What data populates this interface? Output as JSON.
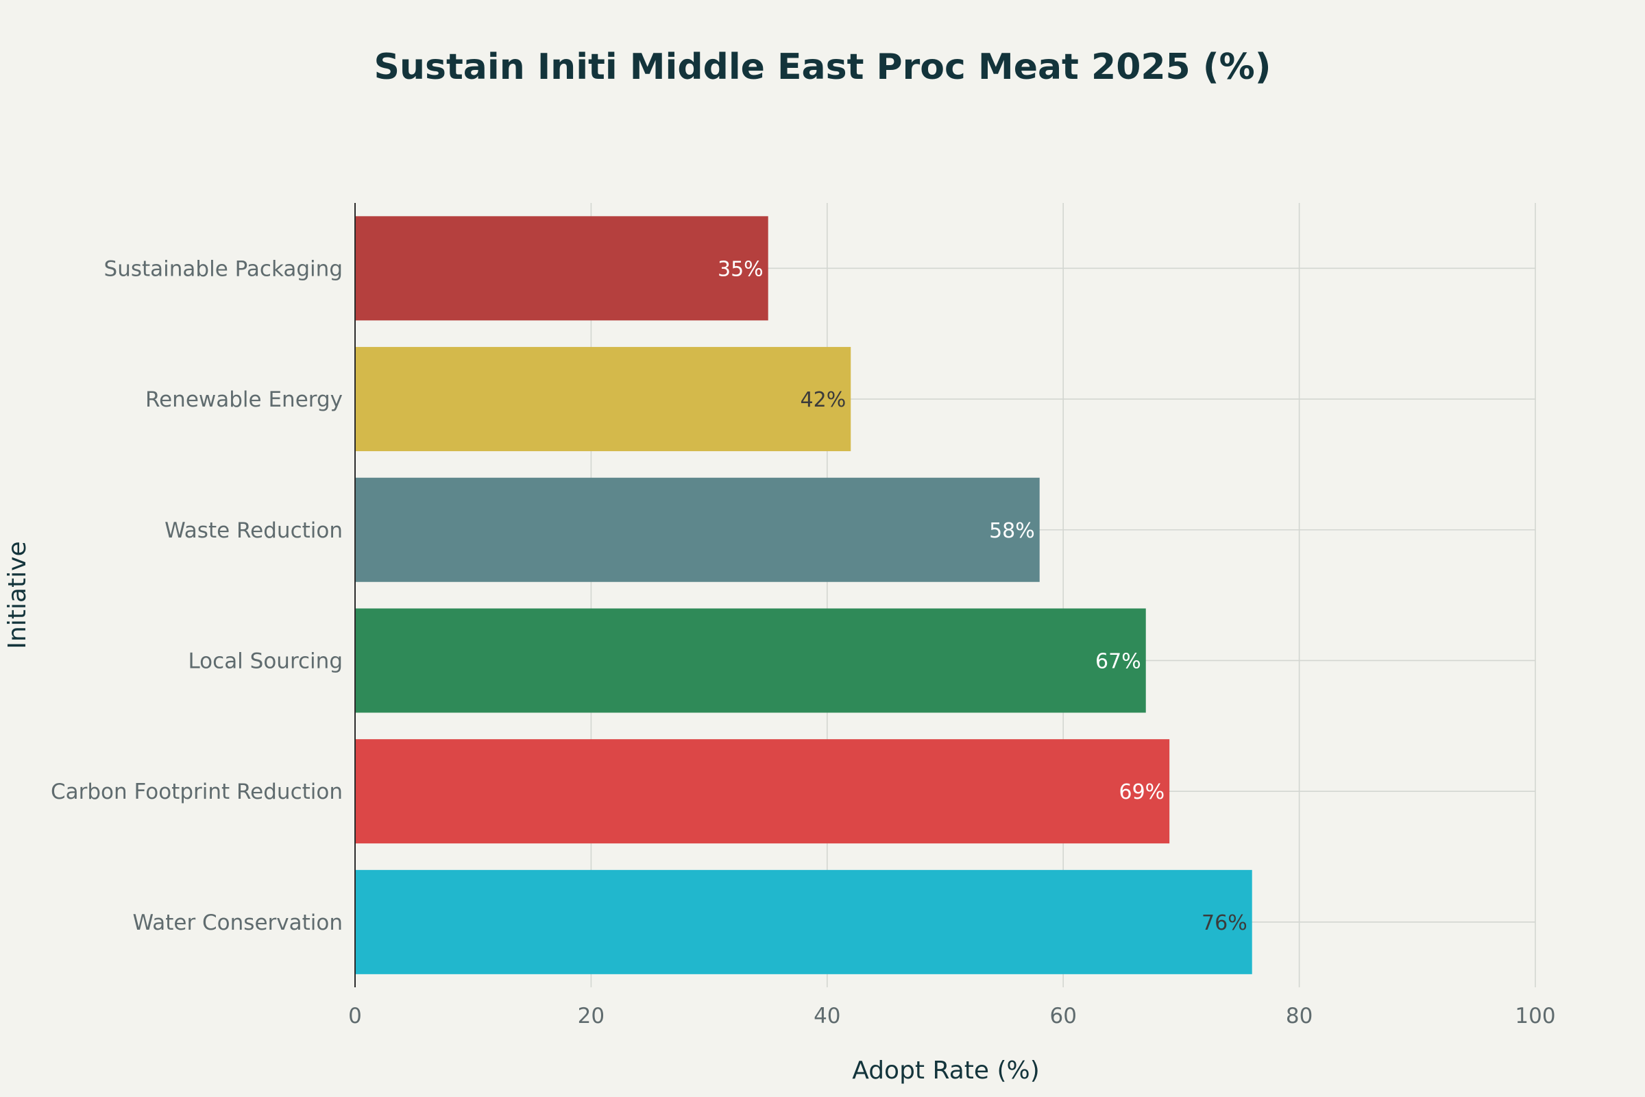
{
  "chart_data": {
    "type": "bar",
    "orientation": "horizontal",
    "title": "Sustain Initi Middle East Proc Meat 2025 (%)",
    "xlabel": "Adopt Rate (%)",
    "ylabel": "Initiative",
    "xlim": [
      0,
      100
    ],
    "xticks": [
      0,
      20,
      40,
      60,
      80,
      100
    ],
    "grid": true,
    "categories": [
      "Sustainable Packaging",
      "Renewable Energy",
      "Waste Reduction",
      "Local Sourcing",
      "Carbon Footprint Reduction",
      "Water Conservation"
    ],
    "values": [
      35,
      42,
      58,
      67,
      69,
      76
    ],
    "data_labels": [
      "35%",
      "42%",
      "58%",
      "67%",
      "69%",
      "76%"
    ],
    "colors": [
      "#b5403e",
      "#d4b94b",
      "#5e878c",
      "#2f8a58",
      "#dc4747",
      "#21b7cd"
    ],
    "label_colors": [
      "#ffffff",
      "#3b3b3b",
      "#ffffff",
      "#ffffff",
      "#ffffff",
      "#3b3b3b"
    ]
  }
}
